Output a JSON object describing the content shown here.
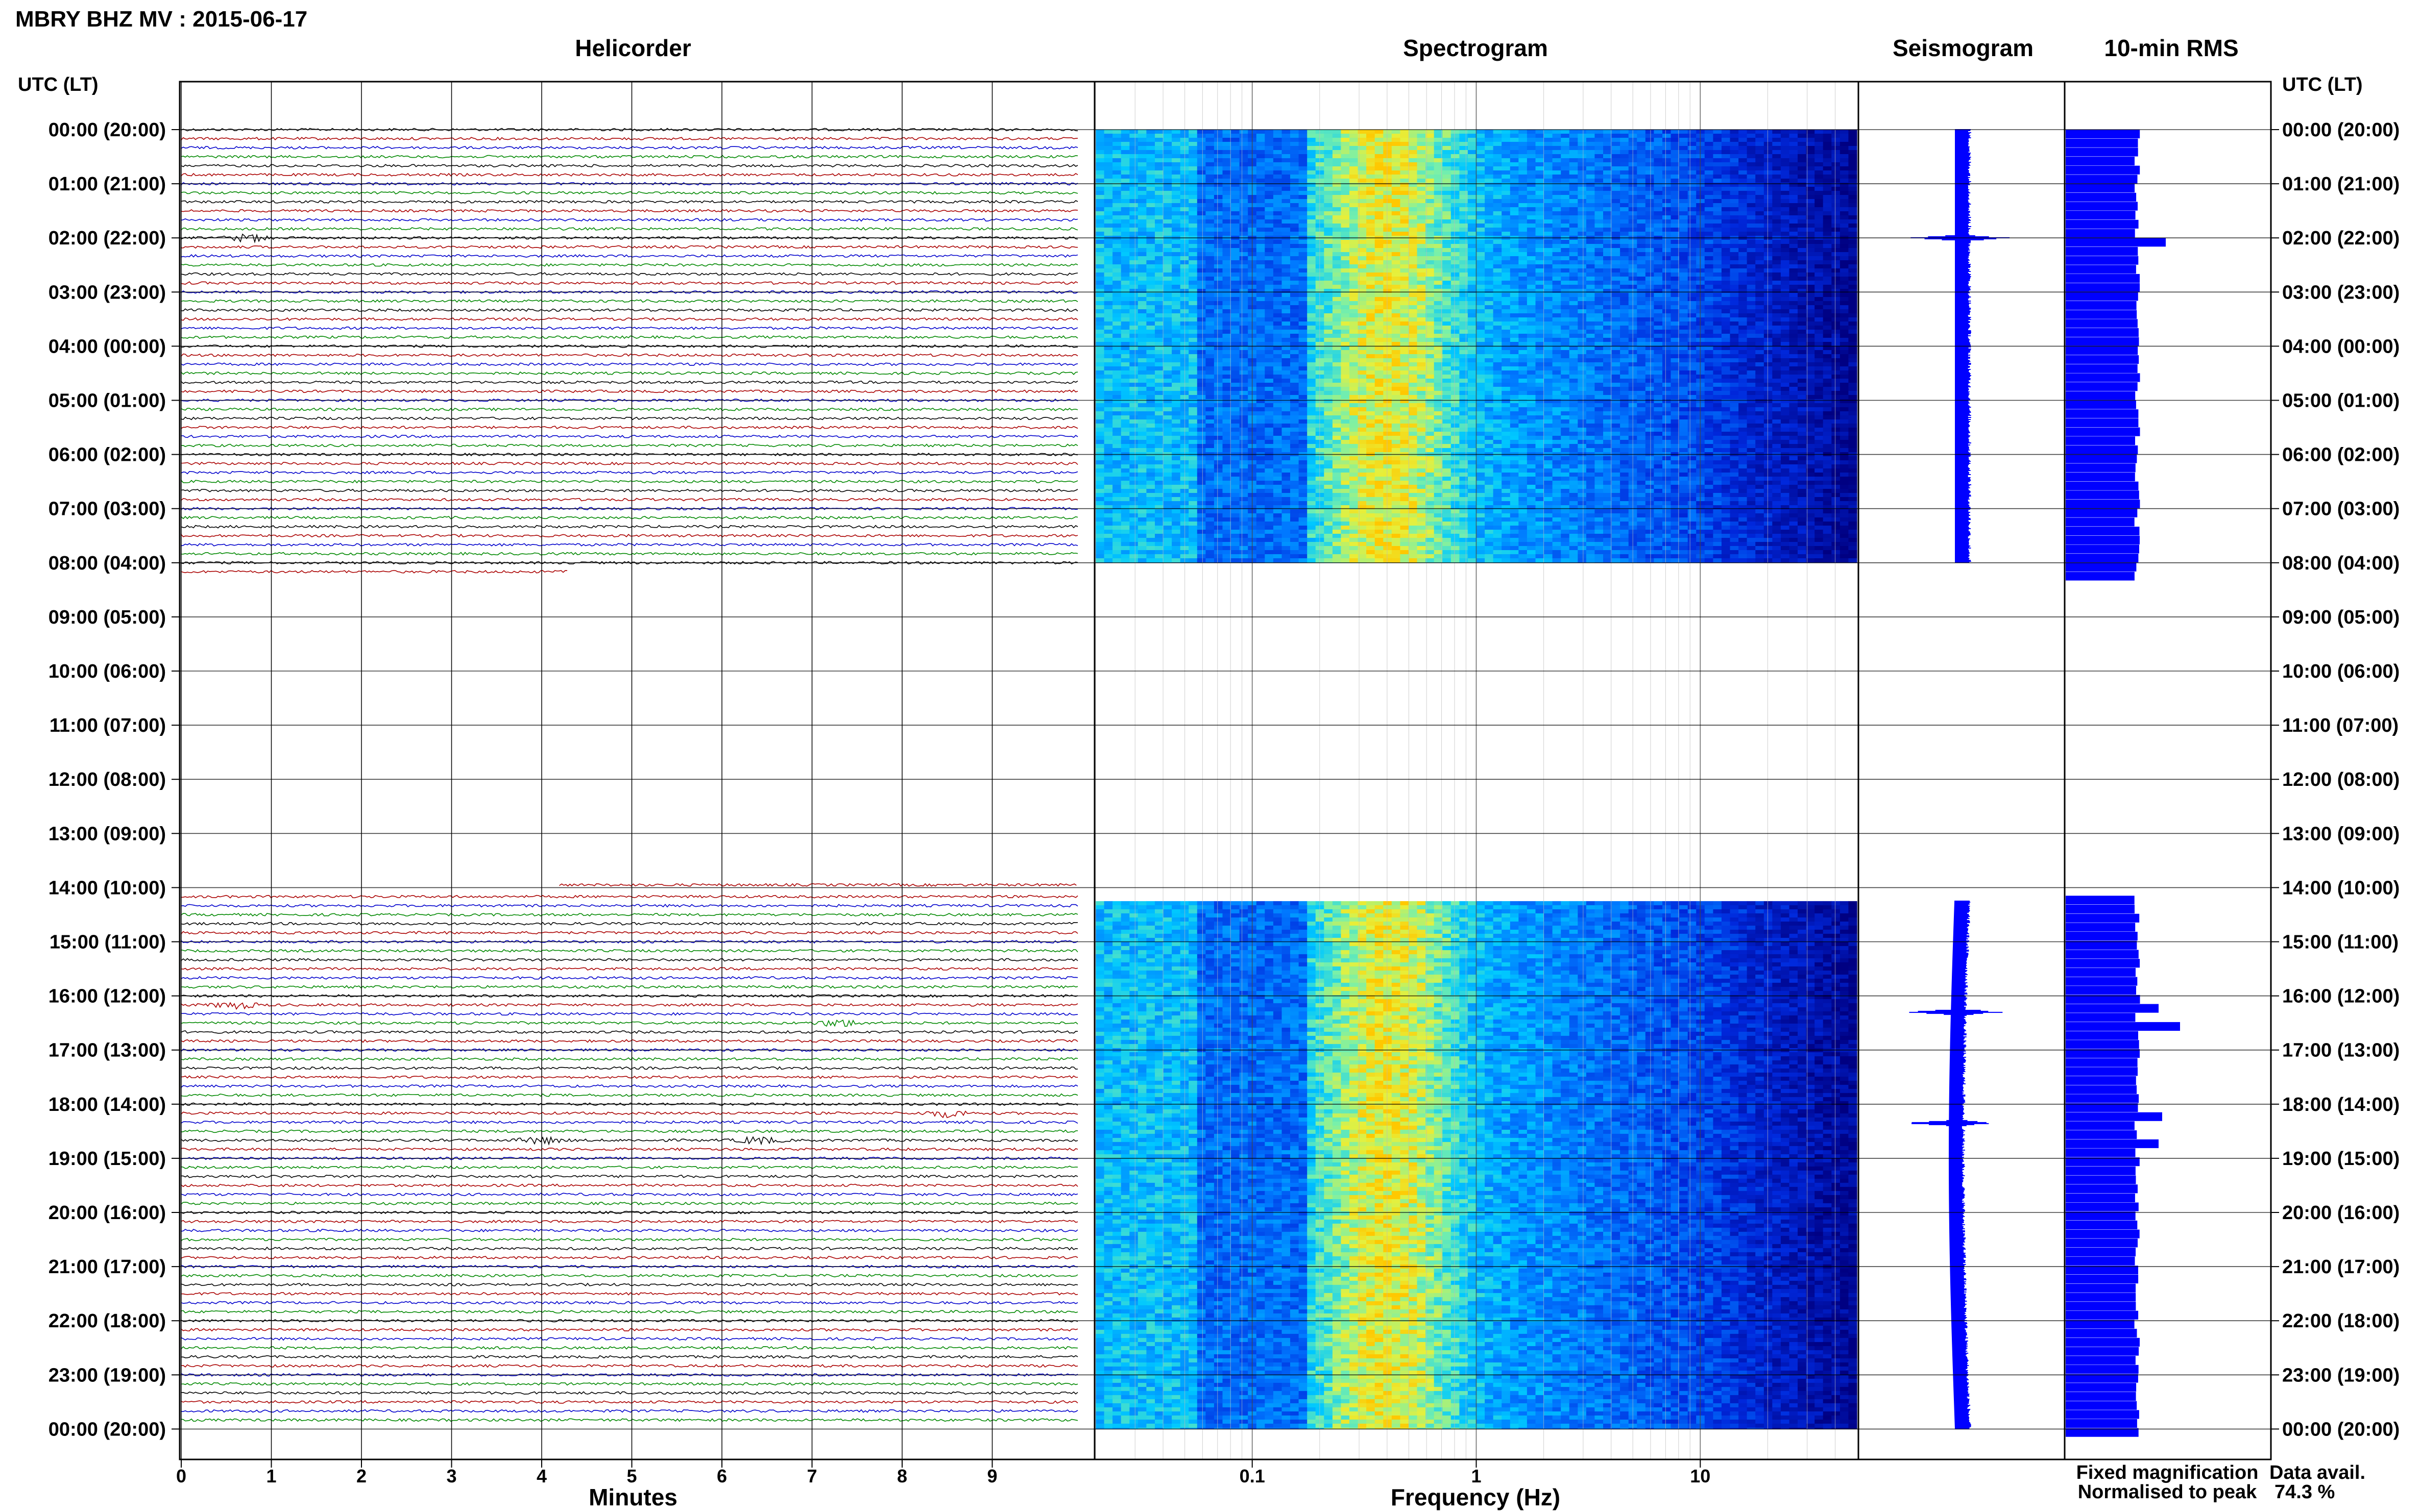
{
  "figure": {
    "title": "MBRY BHZ MV : 2015-06-17",
    "axis_header": "UTC (LT)",
    "time_labels": [
      "00:00 (20:00)",
      "01:00 (21:00)",
      "02:00 (22:00)",
      "03:00 (23:00)",
      "04:00 (00:00)",
      "05:00 (01:00)",
      "06:00 (02:00)",
      "07:00 (03:00)",
      "08:00 (04:00)",
      "09:00 (05:00)",
      "10:00 (06:00)",
      "11:00 (07:00)",
      "12:00 (08:00)",
      "13:00 (09:00)",
      "14:00 (10:00)",
      "15:00 (11:00)",
      "16:00 (12:00)",
      "17:00 (13:00)",
      "18:00 (14:00)",
      "19:00 (15:00)",
      "20:00 (16:00)",
      "21:00 (17:00)",
      "22:00 (18:00)",
      "23:00 (19:00)",
      "00:00 (20:00)"
    ],
    "legend": {
      "fixed": "Fixed magnification",
      "normalised": "Normalised to peak",
      "fixed_color": "#0000ff",
      "normalised_color": "#ff0000"
    },
    "data_avail_label": "Data avail.",
    "data_avail_value": "74.3 %"
  },
  "chart_data": [
    {
      "type": "line",
      "title": "Helicorder",
      "xlabel": "Minutes",
      "ylabel": "",
      "xlim": [
        0,
        10
      ],
      "x_ticks": [
        0,
        1,
        2,
        3,
        4,
        5,
        6,
        7,
        8,
        9
      ],
      "trace_colors": [
        "#000000",
        "#aa0000",
        "#0000cc",
        "#008800"
      ],
      "traces_per_hour": 6,
      "data_segments_utc_hours": [
        [
          0,
          8.12
        ],
        [
          13.92,
          24
        ]
      ],
      "events": [
        {
          "hour": 2.0,
          "minute": 0.75,
          "color": "#000000"
        },
        {
          "hour": 16.1,
          "minute": 0.6,
          "color": "#aa0000"
        },
        {
          "hour": 16.5,
          "minute": 7.3,
          "color": "#008800"
        },
        {
          "hour": 18.1,
          "minute": 8.5,
          "color": "#aa0000"
        },
        {
          "hour": 18.65,
          "minute": 6.4,
          "color": "#000000"
        },
        {
          "hour": 18.6,
          "minute": 4.0,
          "color": "#000000"
        }
      ]
    },
    {
      "type": "heatmap",
      "title": "Spectrogram",
      "xlabel": "Frequency (Hz)",
      "ylabel": "",
      "x_scale": "log",
      "xlim": [
        0.02,
        50
      ],
      "x_ticks": [
        0.1,
        1,
        10
      ],
      "x_tick_labels": [
        "0.1",
        "1",
        "10"
      ],
      "data_segments_utc_hours": [
        [
          0,
          8
        ],
        [
          14.25,
          24
        ]
      ]
    },
    {
      "type": "line",
      "title": "Seismogram",
      "data_segments_utc_hours": [
        [
          0,
          8
        ],
        [
          14.25,
          24
        ]
      ],
      "spikes_utc_hours": [
        2.0,
        16.3,
        18.35
      ]
    },
    {
      "type": "bar",
      "title": "10-min RMS",
      "bar_color": "#0000ff",
      "relative_rms_profile": [
        {
          "hour": 2.0,
          "value": 1.4
        },
        {
          "hour": 16.2,
          "value": 1.3
        },
        {
          "hour": 16.5,
          "value": 1.6
        },
        {
          "hour": 18.2,
          "value": 1.35
        },
        {
          "hour": 18.7,
          "value": 1.3
        }
      ],
      "data_segments_utc_hours": [
        [
          0,
          8.2
        ],
        [
          14.15,
          24
        ]
      ]
    }
  ]
}
